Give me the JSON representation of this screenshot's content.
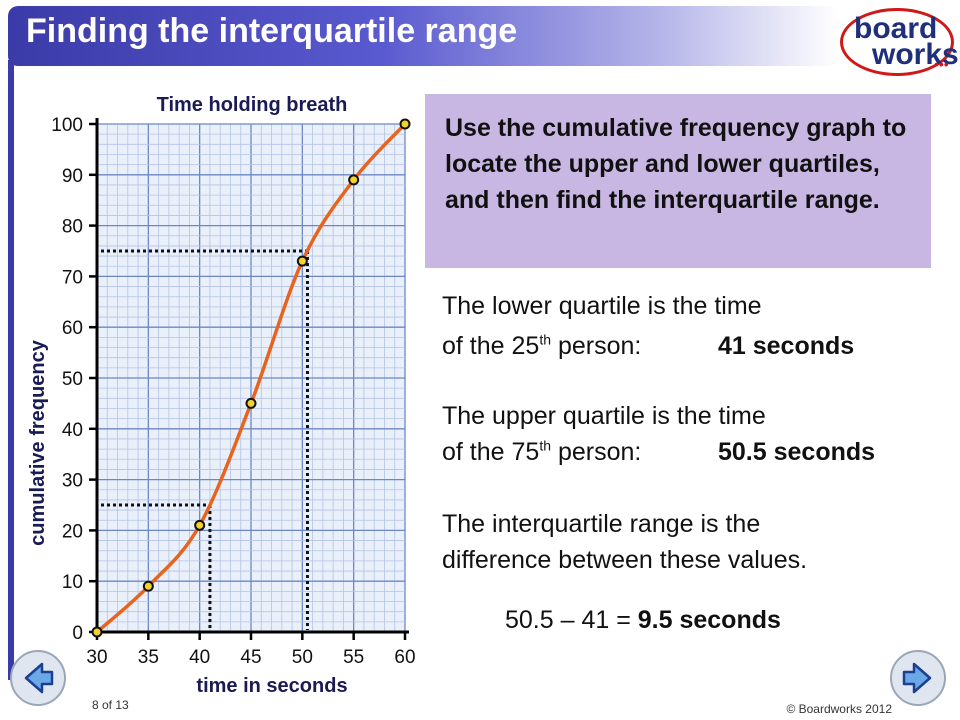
{
  "slide": {
    "title": "Finding the interquartile range",
    "logo_line1": "board",
    "logo_line2": "works",
    "logo_dots": "•••",
    "page_number": "8 of 13",
    "copyright": "© Boardworks 2012"
  },
  "callout": {
    "text": "Use the cumulative frequency graph to locate the upper and lower quartiles, and then find the interquartile range."
  },
  "explanations": {
    "lower_line1": "The lower quartile is the time",
    "lower_line2_a": "of the 25",
    "lower_line2_sup": "th",
    "lower_line2_b": " person:",
    "lower_value": "41 seconds",
    "upper_line1": "The upper quartile is the time",
    "upper_line2_a": "of the 75",
    "upper_line2_sup": "th",
    "upper_line2_b": " person:",
    "upper_value": "50.5 seconds",
    "iqr_line1": "The interquartile range is the",
    "iqr_line2": "difference between these values.",
    "calc_a": "50.5 – 41 = ",
    "calc_b": "9.5 seconds"
  },
  "chart_data": {
    "type": "line",
    "title": "Time holding breath",
    "xlabel": "time in seconds",
    "ylabel": "cumulative frequency",
    "xlim": [
      30,
      60
    ],
    "ylim": [
      0,
      100
    ],
    "x_ticks": [
      30,
      35,
      40,
      45,
      50,
      55,
      60
    ],
    "y_ticks": [
      0,
      10,
      20,
      30,
      40,
      50,
      60,
      70,
      80,
      90,
      100
    ],
    "points": [
      {
        "x": 30,
        "y": 0
      },
      {
        "x": 35,
        "y": 9
      },
      {
        "x": 40,
        "y": 21
      },
      {
        "x": 45,
        "y": 45
      },
      {
        "x": 50,
        "y": 73
      },
      {
        "x": 55,
        "y": 89
      },
      {
        "x": 60,
        "y": 100
      }
    ],
    "quartiles": [
      {
        "cf": 25,
        "time": 41
      },
      {
        "cf": 75,
        "time": 50.5
      }
    ],
    "grid": true,
    "colors": {
      "curve": "#e8641e",
      "point": "#f2d22c",
      "grid_major": "#6b87c8",
      "grid_minor": "#b4c3e6",
      "axis": "#000000"
    }
  },
  "navigation": {
    "prev_icon": "arrow-left-icon",
    "next_icon": "arrow-right-icon"
  }
}
